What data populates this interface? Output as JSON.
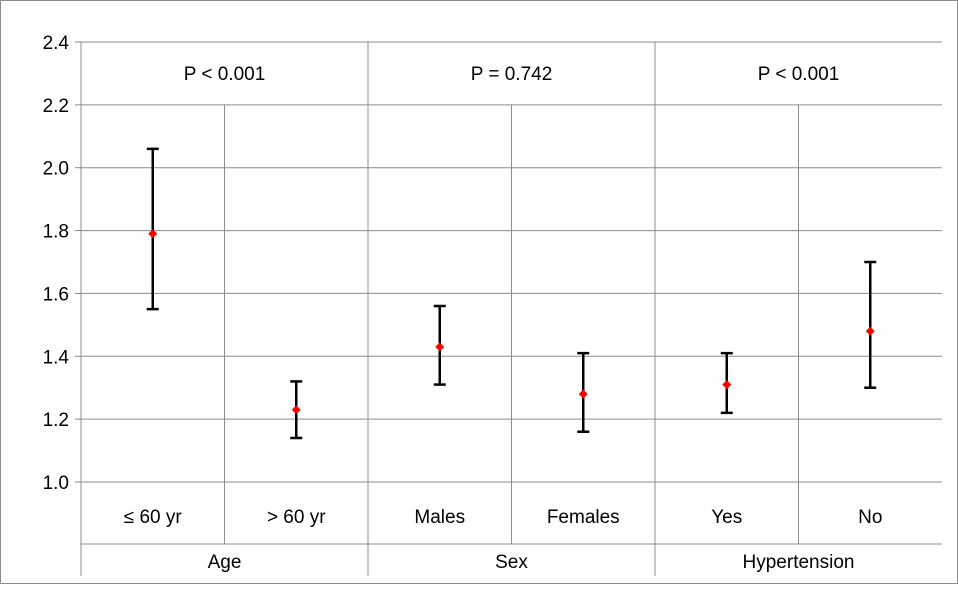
{
  "chart_data": {
    "type": "scatter",
    "title": "",
    "xlabel": "",
    "ylabel": "",
    "ylim": [
      1.0,
      2.4
    ],
    "yticks": [
      "1.0",
      "1.2",
      "1.4",
      "1.6",
      "1.8",
      "2.0",
      "2.2",
      "2.4"
    ],
    "grid": true,
    "legend": "none",
    "point_color": "#ff0000",
    "error_bar_color": "#000000",
    "groups": [
      {
        "name": "Age",
        "p_value": "P < 0.001",
        "categories": [
          {
            "label": "≤ 60 yr",
            "mean": 1.79,
            "lower": 1.55,
            "upper": 2.06
          },
          {
            "label": "> 60 yr",
            "mean": 1.23,
            "lower": 1.14,
            "upper": 1.32
          }
        ]
      },
      {
        "name": "Sex",
        "p_value": "P = 0.742",
        "categories": [
          {
            "label": "Males",
            "mean": 1.43,
            "lower": 1.31,
            "upper": 1.56
          },
          {
            "label": "Females",
            "mean": 1.28,
            "lower": 1.16,
            "upper": 1.41
          }
        ]
      },
      {
        "name": "Hypertension",
        "p_value": "P < 0.001",
        "categories": [
          {
            "label": "Yes",
            "mean": 1.31,
            "lower": 1.22,
            "upper": 1.41
          },
          {
            "label": "No",
            "mean": 1.48,
            "lower": 1.3,
            "upper": 1.7
          }
        ]
      }
    ]
  }
}
